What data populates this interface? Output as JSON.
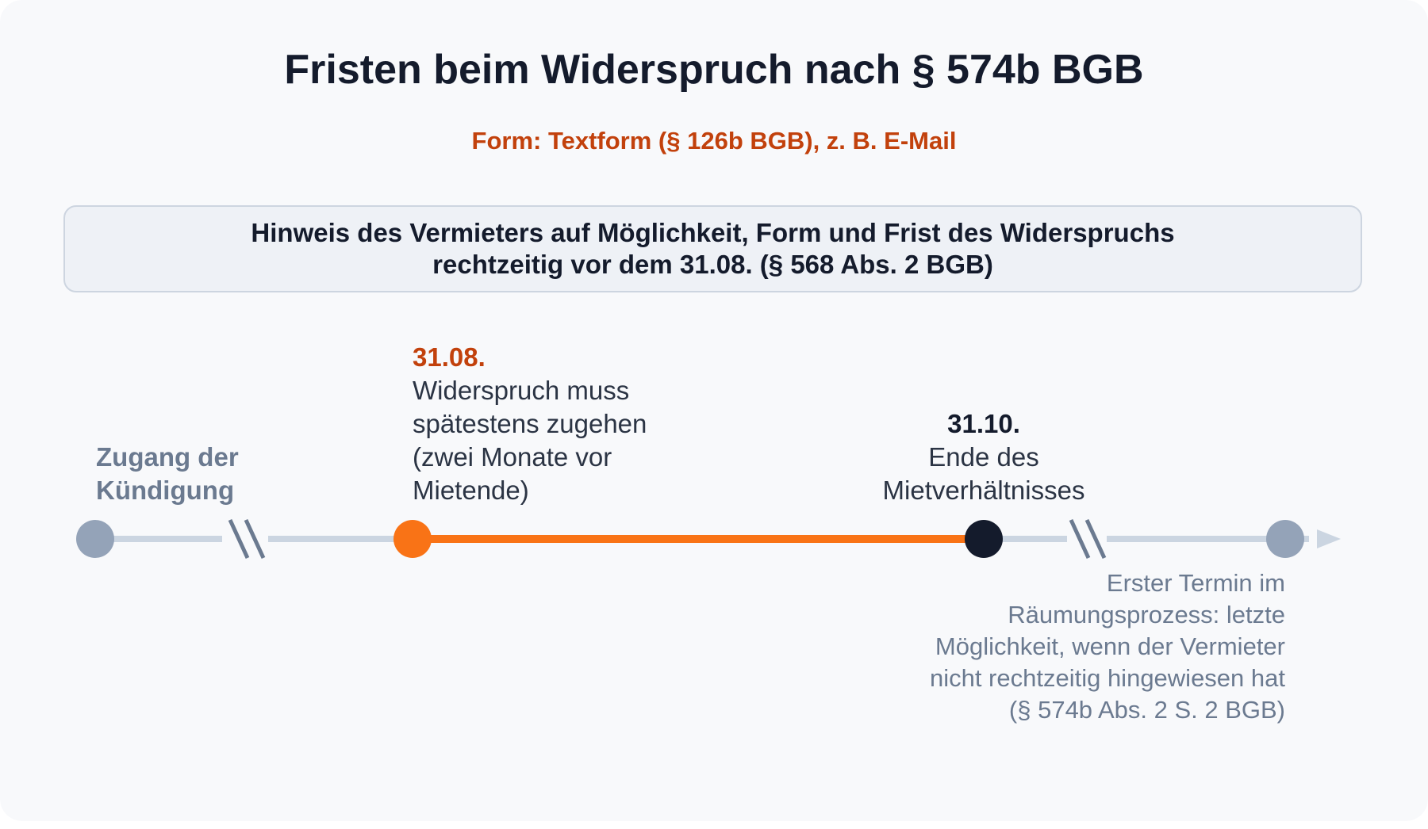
{
  "title": "Fristen beim Widerspruch nach § 574b BGB",
  "subtitle": "Form: Textform (§ 126b BGB), z. B. E-Mail",
  "hint": {
    "line1": "Hinweis des Vermieters auf Möglichkeit, Form und Frist des Widerspruchs",
    "line2": "rechtzeitig vor dem 31.08. (§ 568 Abs. 2 BGB)"
  },
  "timeline": {
    "start": {
      "line1": "Zugang der",
      "line2": "Kündigung"
    },
    "deadline": {
      "date": "31.08.",
      "line1": "Widerspruch muss",
      "line2": "spätestens zugehen",
      "line3": "(zwei Monate vor",
      "line4": "Mietende)"
    },
    "end": {
      "date": "31.10.",
      "line1": "Ende des",
      "line2": "Mietverhältnisses"
    },
    "court": {
      "text": "Erster Termin im Räumungsprozess: letzte Möglichkeit, wenn der Vermieter nicht rechtzeitig hingewiesen hat (§ 574b Abs. 2 S. 2 BGB)"
    }
  },
  "colors": {
    "accent": "#f97316",
    "accent_text": "#c2410c",
    "dark": "#141b2c",
    "muted_node": "#94a3b8",
    "track": "#cbd5e1",
    "muted_text": "#6b7a90"
  }
}
